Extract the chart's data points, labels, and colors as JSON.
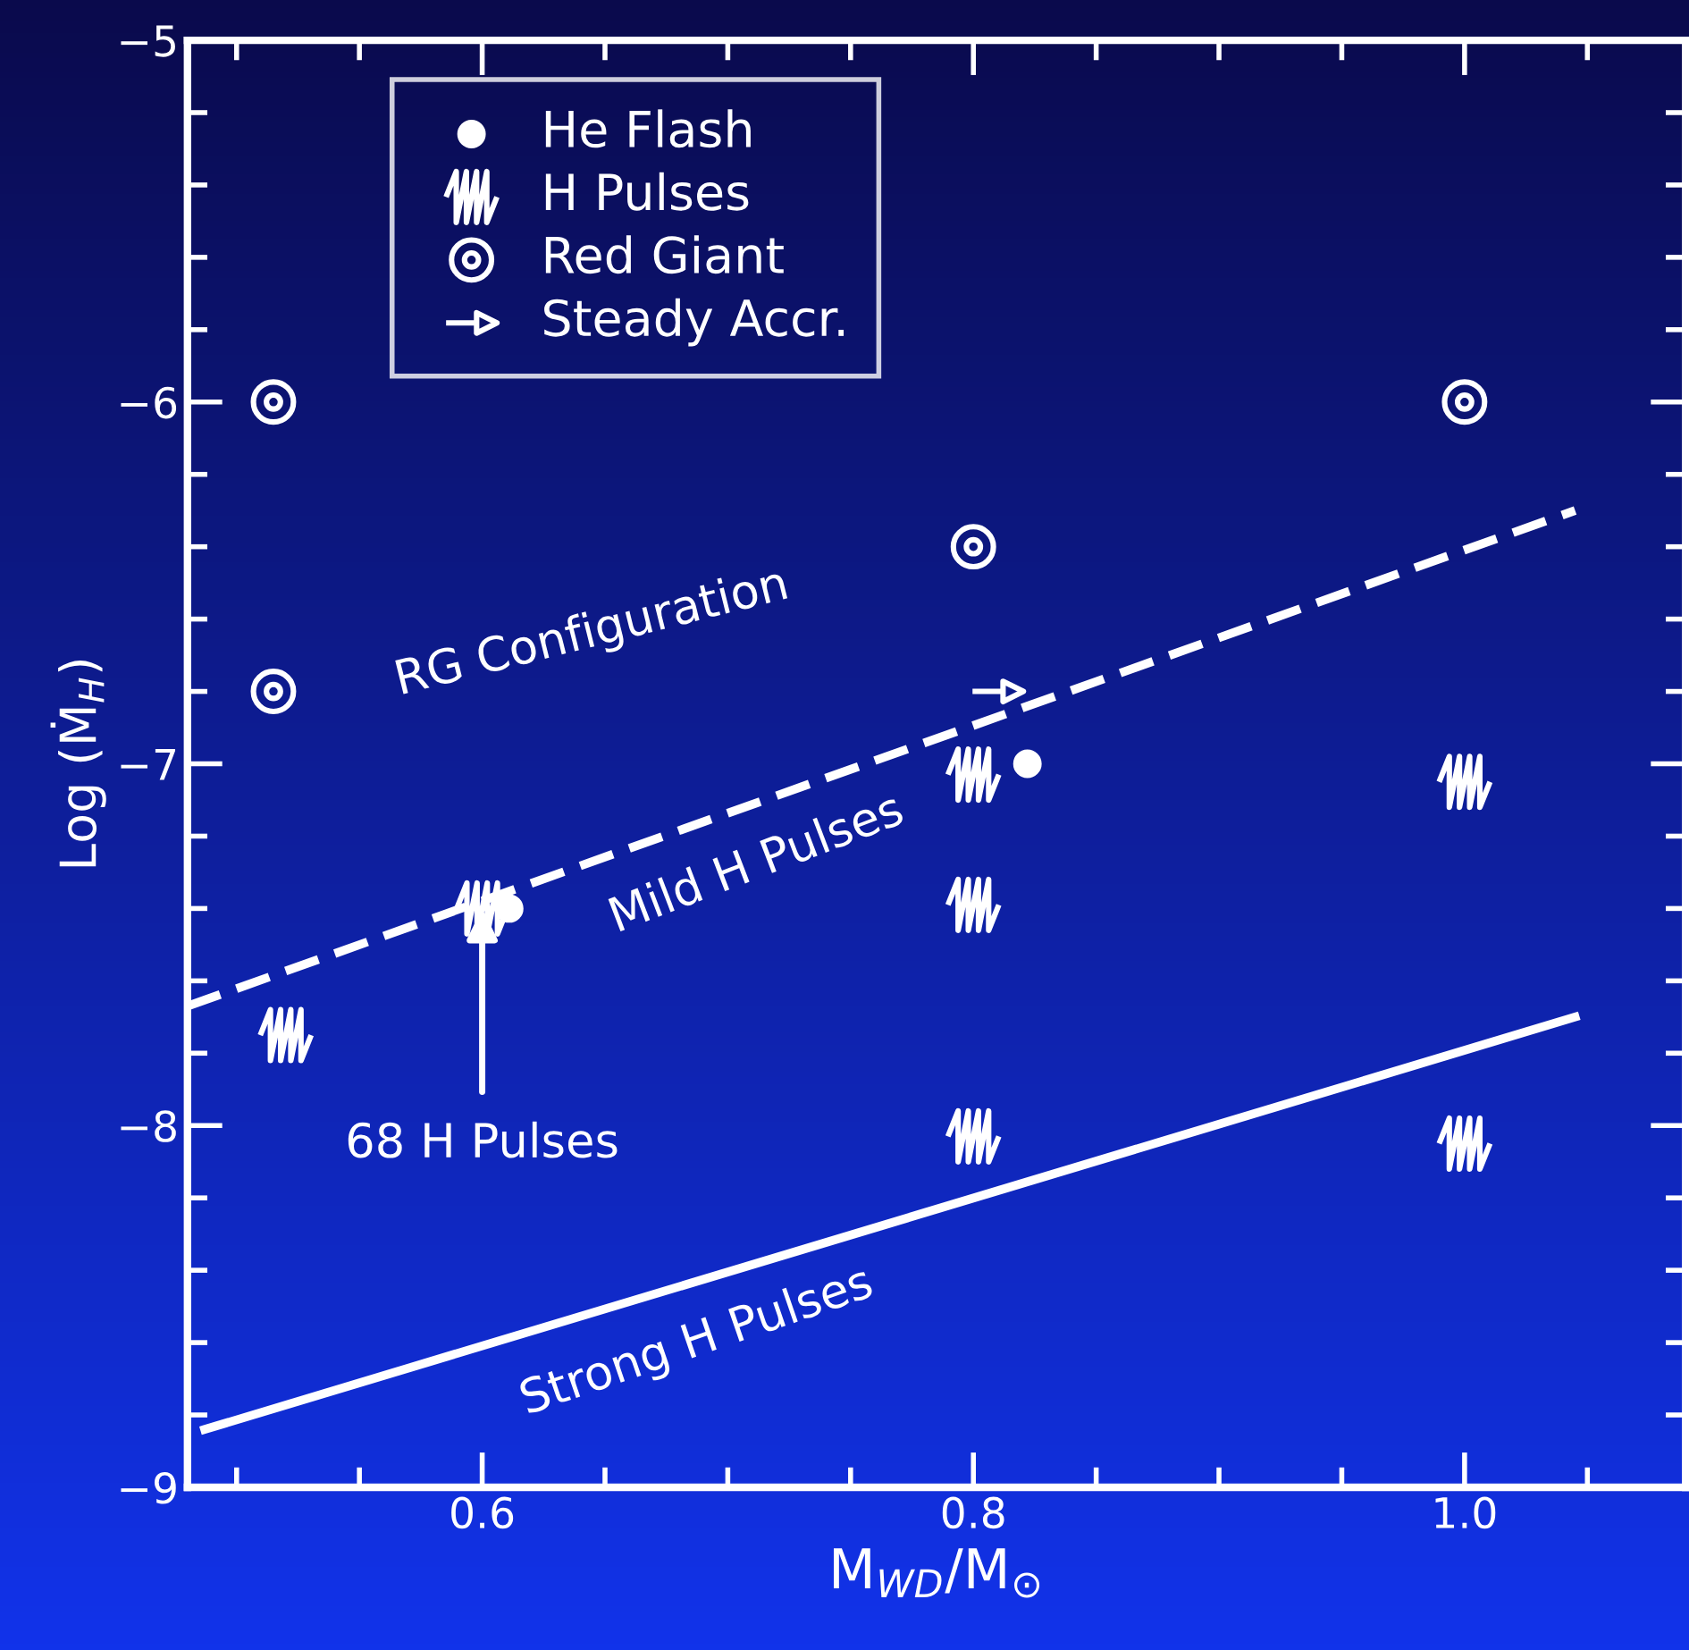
{
  "chart_data": {
    "type": "scatter",
    "xlabel": "M$_{WD}$/M$_{⊙}$",
    "ylabel": "Log (Ṁ$_{H}$)",
    "xlim": [
      0.48,
      1.09
    ],
    "ylim": [
      -9,
      -5
    ],
    "xticks": [
      {
        "value": 0.5,
        "label": null
      },
      {
        "value": 0.55,
        "label": null
      },
      {
        "value": 0.6,
        "label": "0.6"
      },
      {
        "value": 0.65,
        "label": null
      },
      {
        "value": 0.7,
        "label": null
      },
      {
        "value": 0.75,
        "label": null
      },
      {
        "value": 0.8,
        "label": "0.8"
      },
      {
        "value": 0.85,
        "label": null
      },
      {
        "value": 0.9,
        "label": null
      },
      {
        "value": 0.95,
        "label": null
      },
      {
        "value": 1.0,
        "label": "1.0"
      },
      {
        "value": 1.05,
        "label": null
      }
    ],
    "yticks": [
      {
        "value": -9,
        "label": "−9"
      },
      {
        "value": -8.8,
        "label": null
      },
      {
        "value": -8.6,
        "label": null
      },
      {
        "value": -8.4,
        "label": null
      },
      {
        "value": -8.2,
        "label": null
      },
      {
        "value": -8,
        "label": "−8"
      },
      {
        "value": -7.8,
        "label": null
      },
      {
        "value": -7.6,
        "label": null
      },
      {
        "value": -7.4,
        "label": null
      },
      {
        "value": -7.2,
        "label": null
      },
      {
        "value": -7,
        "label": "−7"
      },
      {
        "value": -6.8,
        "label": null
      },
      {
        "value": -6.6,
        "label": null
      },
      {
        "value": -6.4,
        "label": null
      },
      {
        "value": -6.2,
        "label": null
      },
      {
        "value": -6,
        "label": "−6"
      },
      {
        "value": -5.8,
        "label": null
      },
      {
        "value": -5.6,
        "label": null
      },
      {
        "value": -5.4,
        "label": null
      },
      {
        "value": -5.2,
        "label": null
      },
      {
        "value": -5,
        "label": "−5"
      }
    ],
    "grid": false,
    "legend": "top left",
    "series": [
      {
        "name": "He Flash",
        "marker": "circle",
        "color": "#ffffff",
        "x": [
          0.611,
          0.822
        ],
        "values": [
          -7.4,
          -7.0
        ]
      },
      {
        "name": "H Pulses",
        "marker": "cross",
        "color": "#ffffff",
        "x": [
          0.52,
          0.6,
          0.8,
          0.8,
          0.8,
          1.0,
          1.0
        ],
        "values": [
          -7.75,
          -7.4,
          -7.03,
          -7.39,
          -8.03,
          -7.05,
          -8.05
        ]
      },
      {
        "name": "Red Giant",
        "marker": "circle",
        "color": "#ffffff",
        "x": [
          0.515,
          0.515,
          0.8,
          1.0
        ],
        "values": [
          -6.0,
          -6.8,
          -6.4,
          -6.0
        ]
      },
      {
        "name": "Steady Accr.",
        "color": "#ffffff",
        "x": [
          0.81
        ],
        "values": [
          -6.8
        ]
      },
      {
        "type": "line",
        "line_style": "dashed",
        "color": "#ffffff",
        "x": [
          0.48,
          1.045
        ],
        "values": [
          -7.67,
          -6.3
        ]
      },
      {
        "type": "line",
        "line_style": "solid",
        "color": "#ffffff",
        "x": [
          0.487,
          1.045
        ],
        "values": [
          -8.84,
          -7.7
        ]
      }
    ],
    "annotations": [
      "RG Configuration",
      "Mild H Pulses",
      "Strong H Pulses",
      {
        "text": "68 H Pulses",
        "x": 0.6,
        "y": -7.4
      }
    ]
  }
}
